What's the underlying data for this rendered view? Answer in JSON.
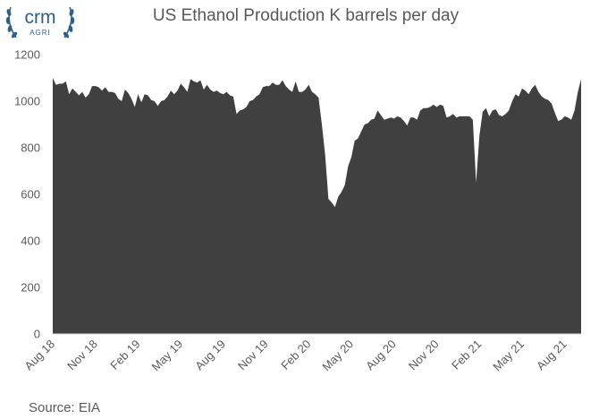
{
  "logo": {
    "text": "crm",
    "subtext": "AGRI"
  },
  "source": "Source: EIA",
  "colors": {
    "area": "#404040",
    "text": "#595959",
    "axis": "#d9d9d9"
  },
  "chart_data": {
    "type": "area",
    "title": "US Ethanol Production K barrels per day",
    "xlabel": "",
    "ylabel": "",
    "ylim": [
      0,
      1200
    ],
    "yticks": [
      0,
      200,
      400,
      600,
      800,
      1000,
      1200
    ],
    "grid": false,
    "legend": "none",
    "xtick_labels": [
      "Aug 18",
      "Nov 18",
      "Feb 19",
      "May 19",
      "Aug 19",
      "Nov 19",
      "Feb 20",
      "May 20",
      "Aug 20",
      "Nov 20",
      "Feb 21",
      "May 21",
      "Aug 21"
    ],
    "xtick_weeks": [
      0,
      13,
      26,
      39,
      52,
      65,
      78,
      91,
      104,
      117,
      130,
      143,
      156
    ],
    "series": [
      {
        "values": [
          1100,
          1070,
          1075,
          1075,
          1085,
          1030,
          1055,
          1040,
          1025,
          1040,
          1015,
          1030,
          1065,
          1065,
          1060,
          1045,
          1060,
          1040,
          1040,
          1035,
          1010,
          1000,
          1050,
          1035,
          1010,
          975,
          1030,
          995,
          1030,
          1025,
          1005,
          1000,
          980,
          1000,
          1005,
          1020,
          1045,
          1030,
          1045,
          1075,
          1060,
          1040,
          1095,
          1085,
          1080,
          1090,
          1050,
          1070,
          1050,
          1040,
          1045,
          1035,
          1030,
          1040,
          1025,
          1020,
          945,
          960,
          965,
          975,
          1000,
          1005,
          1020,
          1030,
          1060,
          1065,
          1065,
          1080,
          1070,
          1070,
          1090,
          1065,
          1050,
          1040,
          1085,
          1040,
          1040,
          1050,
          1070,
          1040,
          1030,
          1015,
          900,
          770,
          580,
          565,
          545,
          590,
          610,
          640,
          720,
          760,
          830,
          840,
          870,
          900,
          905,
          920,
          925,
          960,
          940,
          920,
          925,
          930,
          925,
          935,
          930,
          915,
          895,
          930,
          930,
          920,
          960,
          970,
          970,
          975,
          985,
          975,
          985,
          980,
          930,
          935,
          945,
          930,
          935,
          935,
          935,
          935,
          920,
          650,
          850,
          955,
          970,
          935,
          960,
          965,
          940,
          935,
          945,
          960,
          1000,
          1030,
          1020,
          1055,
          1045,
          1030,
          1055,
          1070,
          1040,
          1020,
          1010,
          1005,
          990,
          950,
          915,
          920,
          935,
          930,
          920,
          960,
          1040,
          1095
        ]
      }
    ]
  }
}
